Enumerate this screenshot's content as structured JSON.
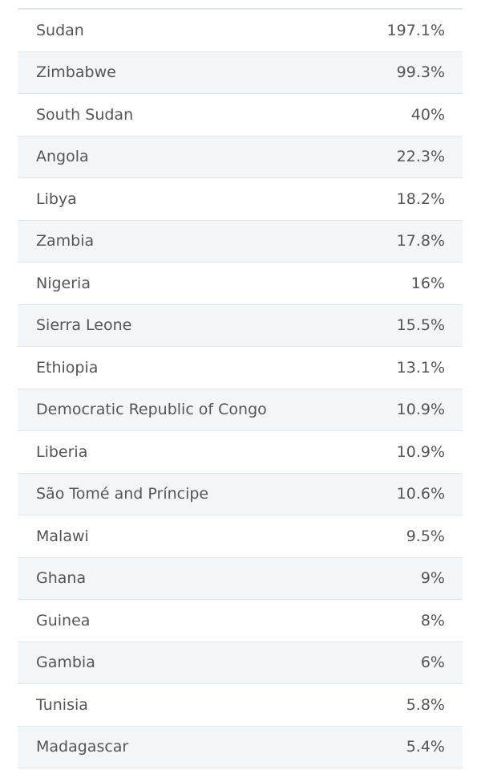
{
  "table": {
    "rows": [
      [
        "Sudan",
        "197.1%"
      ],
      [
        "Zimbabwe",
        "99.3%"
      ],
      [
        "South Sudan",
        "40%"
      ],
      [
        "Angola",
        "22.3%"
      ],
      [
        "Libya",
        "18.2%"
      ],
      [
        "Zambia",
        "17.8%"
      ],
      [
        "Nigeria",
        "16%"
      ],
      [
        "Sierra Leone",
        "15.5%"
      ],
      [
        "Ethiopia",
        "13.1%"
      ],
      [
        "Democratic Republic of Congo",
        "10.9%"
      ],
      [
        "Liberia",
        "10.9%"
      ],
      [
        "São Tomé and Príncipe",
        "10.6%"
      ],
      [
        "Malawi",
        "9.5%"
      ],
      [
        "Ghana",
        "9%"
      ],
      [
        "Guinea",
        "8%"
      ],
      [
        "Gambia",
        "6%"
      ],
      [
        "Tunisia",
        "5.8%"
      ],
      [
        "Madagascar",
        "5.4%"
      ]
    ]
  }
}
